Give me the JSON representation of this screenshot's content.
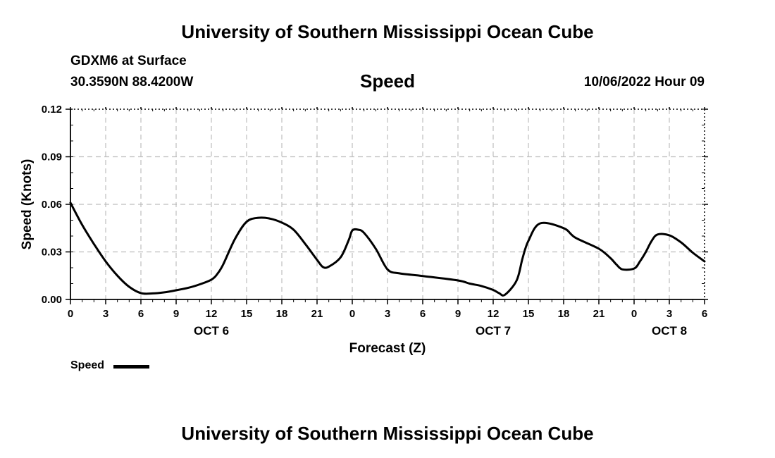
{
  "header": {
    "title": "University of Southern Mississippi Ocean Cube",
    "station": "GDXM6 at Surface",
    "coords": "30.3590N  88.4200W",
    "datetime": "10/06/2022 Hour 09",
    "footer_title": "University of Southern Mississippi Ocean Cube"
  },
  "chart_data": {
    "type": "line",
    "title": "Speed",
    "xlabel": "Forecast (Z)",
    "ylabel": "Speed (Knots)",
    "ylim": [
      0,
      0.12
    ],
    "yticks": [
      "0.00",
      "0.03",
      "0.06",
      "0.09",
      "0.12"
    ],
    "xlim": [
      0,
      54
    ],
    "xtick_labels": [
      "0",
      "3",
      "6",
      "9",
      "12",
      "15",
      "18",
      "21",
      "0",
      "3",
      "6",
      "9",
      "12",
      "15",
      "18",
      "21",
      "0",
      "3",
      "6"
    ],
    "date_labels": [
      {
        "label": "OCT 6",
        "at_hour": 12
      },
      {
        "label": "OCT 7",
        "at_hour": 36
      },
      {
        "label": "OCT 8",
        "at_hour": 51
      }
    ],
    "grid": true,
    "legend": "bottom-left",
    "series": [
      {
        "name": "Speed",
        "color": "#000000",
        "x": [
          0,
          1,
          2,
          3,
          4,
          5,
          6,
          7,
          8,
          9,
          10,
          11,
          12,
          12.5,
          13,
          14,
          15,
          16,
          17,
          18,
          19,
          20,
          21,
          21.5,
          22,
          23,
          23.7,
          24,
          24.5,
          25,
          26,
          27,
          28,
          30,
          33,
          34,
          35,
          36,
          36.5,
          37,
          38,
          38.5,
          39,
          40,
          42,
          43,
          45,
          46,
          46.5,
          47,
          48,
          48.5,
          49,
          49.5,
          50,
          51,
          52,
          53,
          54
        ],
        "values": [
          0.061,
          0.047,
          0.035,
          0.024,
          0.015,
          0.008,
          0.004,
          0.0038,
          0.0045,
          0.0058,
          0.0073,
          0.0095,
          0.0125,
          0.016,
          0.022,
          0.038,
          0.049,
          0.0515,
          0.051,
          0.0485,
          0.044,
          0.035,
          0.025,
          0.0205,
          0.0207,
          0.0265,
          0.0375,
          0.0435,
          0.044,
          0.042,
          0.032,
          0.019,
          0.0165,
          0.0148,
          0.012,
          0.01,
          0.0085,
          0.006,
          0.004,
          0.003,
          0.012,
          0.026,
          0.037,
          0.048,
          0.045,
          0.039,
          0.032,
          0.026,
          0.022,
          0.019,
          0.0195,
          0.024,
          0.03,
          0.037,
          0.041,
          0.0405,
          0.036,
          0.0295,
          0.024
        ]
      }
    ]
  },
  "legend": {
    "label": "Speed"
  }
}
